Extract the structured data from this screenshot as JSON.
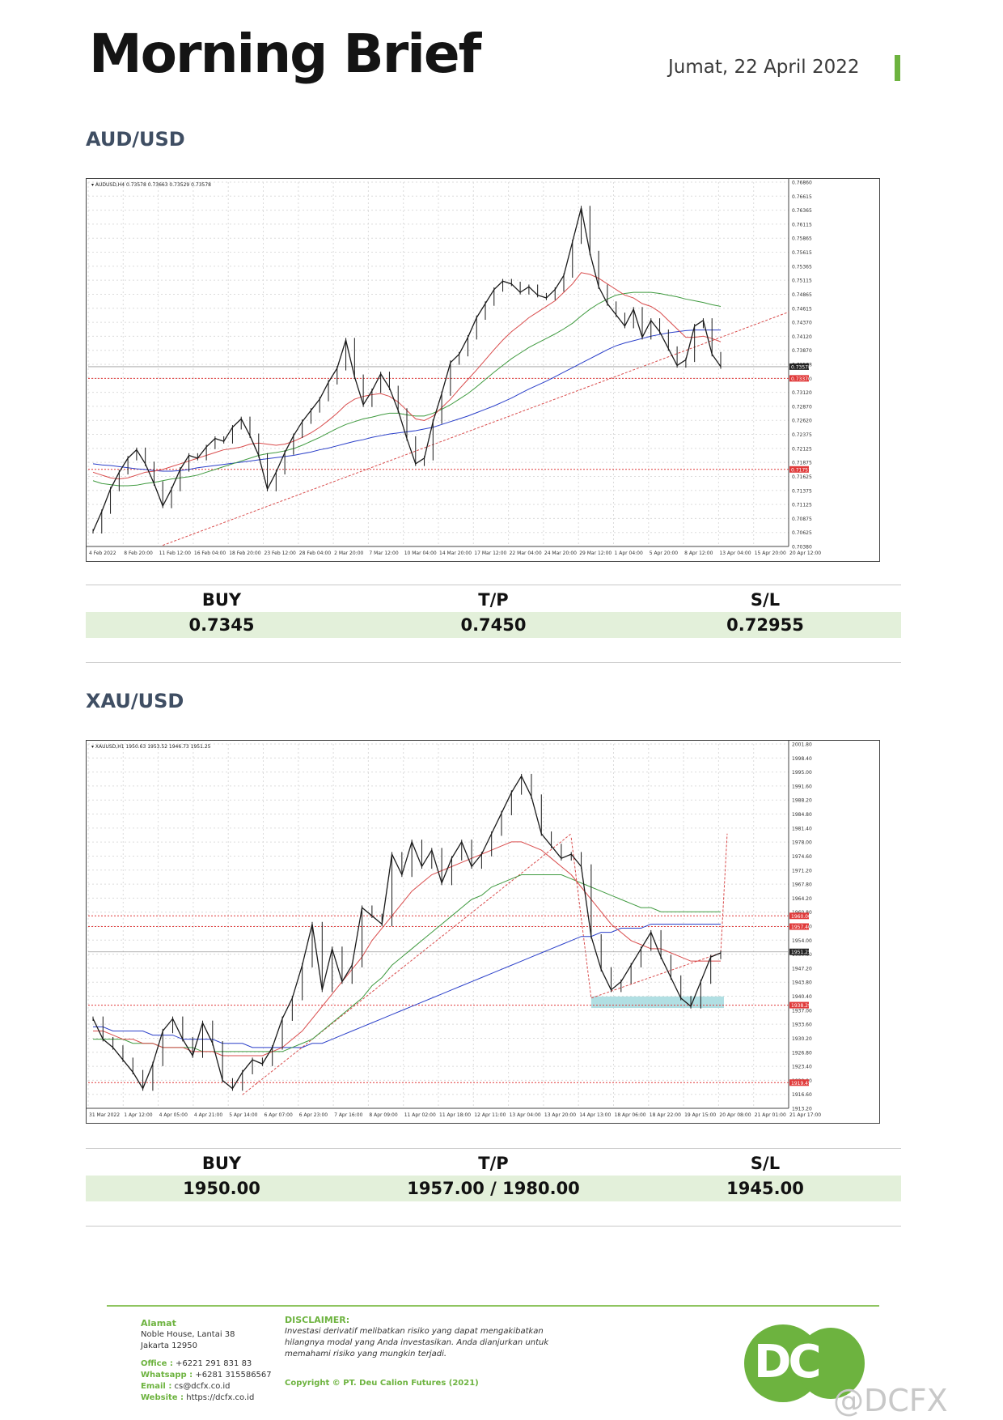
{
  "header": {
    "brand": "Morning Brief",
    "date": "Jumat, 22 April 2022",
    "accent_color": "#6db33f"
  },
  "aud": {
    "title": "AUD/USD",
    "chart_info": "AUDUSD,H4  0.73578 0.73663 0.73529 0.73578",
    "chart_data": {
      "type": "line",
      "symbol": "AUDUSD,H4",
      "ylim": [
        0.7038,
        0.7686
      ],
      "y_ticks": [
        "0.76860",
        "0.76615",
        "0.76365",
        "0.76115",
        "0.75865",
        "0.75615",
        "0.75365",
        "0.75115",
        "0.74865",
        "0.74615",
        "0.74370",
        "0.74120",
        "0.73870",
        "0.73578",
        "0.73370",
        "0.73120",
        "0.72870",
        "0.72620",
        "0.72375",
        "0.72125",
        "0.71875",
        "0.71625",
        "0.71375",
        "0.71125",
        "0.70875",
        "0.70625",
        "0.70380"
      ],
      "x_ticks": [
        "4 Feb 2022",
        "8 Feb 20:00",
        "11 Feb 12:00",
        "16 Feb 04:00",
        "18 Feb 20:00",
        "23 Feb 12:00",
        "28 Feb 04:00",
        "2 Mar 20:00",
        "7 Mar 12:00",
        "10 Mar 04:00",
        "14 Mar 20:00",
        "17 Mar 12:00",
        "22 Mar 04:00",
        "24 Mar 20:00",
        "29 Mar 12:00",
        "1 Apr 04:00",
        "5 Apr 20:00",
        "8 Apr 12:00",
        "13 Apr 04:00",
        "15 Apr 20:00",
        "20 Apr 12:00"
      ],
      "price_labels": [
        {
          "label": "0.73578",
          "value": 0.73578,
          "color": "#222222"
        },
        {
          "label": "0.73370",
          "value": 0.7337,
          "color": "#e03a3a"
        },
        {
          "label": "0.71751",
          "value": 0.71751,
          "color": "#e03a3a"
        }
      ],
      "close": [
        0.7065,
        0.71,
        0.714,
        0.717,
        0.7195,
        0.721,
        0.7185,
        0.715,
        0.711,
        0.714,
        0.7175,
        0.72,
        0.7195,
        0.7215,
        0.723,
        0.7225,
        0.725,
        0.7265,
        0.7235,
        0.72,
        0.714,
        0.717,
        0.7205,
        0.7235,
        0.726,
        0.728,
        0.73,
        0.733,
        0.7355,
        0.7405,
        0.734,
        0.729,
        0.7315,
        0.7345,
        0.732,
        0.728,
        0.723,
        0.7185,
        0.7195,
        0.726,
        0.731,
        0.7365,
        0.738,
        0.741,
        0.7445,
        0.747,
        0.7495,
        0.751,
        0.7505,
        0.749,
        0.75,
        0.7485,
        0.748,
        0.7495,
        0.752,
        0.758,
        0.764,
        0.756,
        0.75,
        0.747,
        0.745,
        0.743,
        0.746,
        0.741,
        0.744,
        0.742,
        0.739,
        0.736,
        0.737,
        0.743,
        0.744,
        0.738,
        0.7358
      ],
      "ma_red": [
        0.717,
        0.7165,
        0.716,
        0.7158,
        0.716,
        0.7165,
        0.717,
        0.7172,
        0.7175,
        0.718,
        0.7185,
        0.719,
        0.7195,
        0.72,
        0.7205,
        0.721,
        0.7212,
        0.7215,
        0.722,
        0.7222,
        0.722,
        0.7218,
        0.722,
        0.7225,
        0.7232,
        0.724,
        0.725,
        0.7262,
        0.7275,
        0.729,
        0.73,
        0.7305,
        0.7308,
        0.731,
        0.7305,
        0.7295,
        0.728,
        0.7265,
        0.7262,
        0.727,
        0.7285,
        0.73,
        0.7318,
        0.7335,
        0.7352,
        0.737,
        0.7388,
        0.7405,
        0.742,
        0.7432,
        0.7445,
        0.7455,
        0.7465,
        0.7475,
        0.749,
        0.7505,
        0.7525,
        0.7522,
        0.7515,
        0.7505,
        0.7495,
        0.7485,
        0.748,
        0.747,
        0.7465,
        0.7455,
        0.744,
        0.7425,
        0.741,
        0.741,
        0.7412,
        0.7408,
        0.7402
      ],
      "ma_green": [
        0.7155,
        0.715,
        0.7148,
        0.7146,
        0.7146,
        0.7147,
        0.715,
        0.7152,
        0.7155,
        0.7158,
        0.716,
        0.7162,
        0.7165,
        0.717,
        0.7175,
        0.718,
        0.7185,
        0.719,
        0.7195,
        0.72,
        0.7203,
        0.7205,
        0.7208,
        0.7212,
        0.7218,
        0.7225,
        0.7232,
        0.724,
        0.7248,
        0.7255,
        0.726,
        0.7265,
        0.7268,
        0.7272,
        0.7275,
        0.7275,
        0.7272,
        0.727,
        0.727,
        0.7275,
        0.7282,
        0.729,
        0.73,
        0.731,
        0.7322,
        0.7335,
        0.7348,
        0.736,
        0.7372,
        0.7382,
        0.7392,
        0.74,
        0.7408,
        0.7416,
        0.7425,
        0.7435,
        0.7448,
        0.746,
        0.747,
        0.7478,
        0.7485,
        0.7488,
        0.749,
        0.749,
        0.749,
        0.7488,
        0.7485,
        0.7482,
        0.7478,
        0.7475,
        0.7472,
        0.7468,
        0.7465
      ],
      "ma_blue": [
        0.7185,
        0.7183,
        0.7182,
        0.718,
        0.7178,
        0.7176,
        0.7175,
        0.7173,
        0.7172,
        0.7172,
        0.7173,
        0.7175,
        0.7178,
        0.718,
        0.7182,
        0.7184,
        0.7186,
        0.7188,
        0.719,
        0.7192,
        0.7194,
        0.7196,
        0.7198,
        0.72,
        0.7203,
        0.7206,
        0.721,
        0.7213,
        0.7217,
        0.7221,
        0.7225,
        0.7228,
        0.7232,
        0.7235,
        0.7238,
        0.724,
        0.7242,
        0.7244,
        0.7247,
        0.725,
        0.7255,
        0.726,
        0.7265,
        0.727,
        0.7276,
        0.7282,
        0.7288,
        0.7295,
        0.7302,
        0.731,
        0.7318,
        0.7325,
        0.7332,
        0.734,
        0.7348,
        0.7356,
        0.7364,
        0.7372,
        0.738,
        0.7388,
        0.7395,
        0.74,
        0.7404,
        0.7408,
        0.7412,
        0.7415,
        0.7418,
        0.742,
        0.7422,
        0.7423,
        0.7423,
        0.7423,
        0.7423
      ],
      "trend_start": 0.704,
      "trend_end": 0.7455,
      "series_colors": {
        "price": "#1a1a1a",
        "ma_red": "#d94c4c",
        "ma_green": "#3f9a3f",
        "ma_blue": "#2a3fc9"
      }
    },
    "table": {
      "headers": [
        "BUY",
        "T/P",
        "S/L"
      ],
      "values": [
        "0.7345",
        "0.7450",
        "0.72955"
      ]
    }
  },
  "xau": {
    "title": "XAU/USD",
    "chart_info": "XAUUSD,H1  1950.63 1953.52 1946.73 1951.25",
    "chart_data": {
      "type": "line",
      "symbol": "XAUUSD,H1",
      "ylim": [
        1913.2,
        2001.8
      ],
      "y_ticks": [
        "2001.80",
        "1998.40",
        "1995.00",
        "1991.60",
        "1988.20",
        "1984.80",
        "1981.40",
        "1978.00",
        "1974.60",
        "1971.20",
        "1967.80",
        "1964.20",
        "1960.80",
        "1957.40",
        "1954.00",
        "1950.60",
        "1947.20",
        "1943.80",
        "1940.40",
        "1937.00",
        "1933.60",
        "1930.20",
        "1926.80",
        "1923.40",
        "1920.00",
        "1916.60",
        "1913.20"
      ],
      "x_ticks": [
        "31 Mar 2022",
        "1 Apr 12:00",
        "4 Apr 05:00",
        "4 Apr 21:00",
        "5 Apr 14:00",
        "6 Apr 07:00",
        "6 Apr 23:00",
        "7 Apr 16:00",
        "8 Apr 09:00",
        "11 Apr 02:00",
        "11 Apr 18:00",
        "12 Apr 11:00",
        "13 Apr 04:00",
        "13 Apr 20:00",
        "14 Apr 13:00",
        "18 Apr 06:00",
        "18 Apr 22:00",
        "19 Apr 15:00",
        "20 Apr 08:00",
        "21 Apr 01:00",
        "21 Apr 17:00"
      ],
      "price_labels": [
        {
          "label": "1960.00",
          "value": 1960.0,
          "color": "#e03a3a"
        },
        {
          "label": "1957.40",
          "value": 1957.4,
          "color": "#e03a3a"
        },
        {
          "label": "1951.25",
          "value": 1951.25,
          "color": "#222222"
        },
        {
          "label": "1938.29",
          "value": 1938.29,
          "color": "#e03a3a"
        },
        {
          "label": "1919.45",
          "value": 1919.45,
          "color": "#e03a3a"
        }
      ],
      "support_zone": [
        1937.6,
        1940.4
      ],
      "close": [
        1935,
        1930,
        1928,
        1925,
        1922,
        1918,
        1924,
        1932,
        1935,
        1930,
        1926,
        1934,
        1929,
        1920,
        1918,
        1922,
        1925,
        1924,
        1928,
        1935,
        1940,
        1948,
        1958,
        1942,
        1952,
        1944,
        1948,
        1962,
        1960,
        1958,
        1975,
        1970,
        1978,
        1972,
        1976,
        1968,
        1974,
        1978,
        1972,
        1975,
        1980,
        1985,
        1990,
        1994,
        1989,
        1980,
        1977,
        1974,
        1975,
        1972,
        1955,
        1947,
        1942,
        1944,
        1948,
        1952,
        1956,
        1950,
        1945,
        1940,
        1938,
        1944,
        1950,
        1951
      ],
      "ma_red": [
        1932,
        1932,
        1931,
        1930,
        1930,
        1929,
        1929,
        1928,
        1928,
        1928,
        1927,
        1927,
        1927,
        1926,
        1926,
        1926,
        1926,
        1926,
        1927,
        1928,
        1930,
        1932,
        1935,
        1938,
        1941,
        1944,
        1947,
        1950,
        1954,
        1957,
        1960,
        1963,
        1966,
        1968,
        1970,
        1971,
        1972,
        1973,
        1974,
        1975,
        1976,
        1977,
        1978,
        1978,
        1977,
        1976,
        1974,
        1972,
        1970,
        1967,
        1964,
        1961,
        1958,
        1956,
        1954,
        1953,
        1952,
        1952,
        1951,
        1950,
        1949,
        1949,
        1949,
        1949
      ],
      "ma_green": [
        1930,
        1930,
        1930,
        1930,
        1929,
        1929,
        1929,
        1928,
        1928,
        1928,
        1928,
        1927,
        1927,
        1927,
        1927,
        1927,
        1927,
        1927,
        1927,
        1927,
        1928,
        1929,
        1930,
        1932,
        1934,
        1936,
        1938,
        1940,
        1943,
        1945,
        1948,
        1950,
        1952,
        1954,
        1956,
        1958,
        1960,
        1962,
        1964,
        1965,
        1967,
        1968,
        1969,
        1970,
        1970,
        1970,
        1970,
        1970,
        1969,
        1968,
        1967,
        1966,
        1965,
        1964,
        1963,
        1962,
        1962,
        1961,
        1961,
        1961,
        1961,
        1961,
        1961,
        1961
      ],
      "ma_blue": [
        1933,
        1933,
        1932,
        1932,
        1932,
        1932,
        1931,
        1931,
        1931,
        1930,
        1930,
        1930,
        1930,
        1929,
        1929,
        1929,
        1928,
        1928,
        1928,
        1928,
        1928,
        1928,
        1929,
        1929,
        1930,
        1931,
        1932,
        1933,
        1934,
        1935,
        1936,
        1937,
        1938,
        1939,
        1940,
        1941,
        1942,
        1943,
        1944,
        1945,
        1946,
        1947,
        1948,
        1949,
        1950,
        1951,
        1952,
        1953,
        1954,
        1955,
        1955,
        1956,
        1956,
        1957,
        1957,
        1957,
        1958,
        1958,
        1958,
        1958,
        1958,
        1958,
        1958,
        1958
      ],
      "series_colors": {
        "price": "#1a1a1a",
        "ma_red": "#d94c4c",
        "ma_green": "#3f9a3f",
        "ma_blue": "#2a3fc9"
      }
    },
    "table": {
      "headers": [
        "BUY",
        "T/P",
        "S/L"
      ],
      "values": [
        "1950.00",
        "1957.00 / 1980.00",
        "1945.00"
      ]
    }
  },
  "footer": {
    "alamat_label": "Alamat",
    "address_line1": "Noble House, Lantai 38",
    "address_line2": "Jakarta 12950",
    "office_label": "Office :",
    "office_value": "+6221 291 831 83",
    "whatsapp_label": "Whatsapp :",
    "whatsapp_value": "+6281 315586567",
    "email_label": "Email :",
    "email_value": "cs@dcfx.co.id",
    "website_label": "Website :",
    "website_value": "https://dcfx.co.id",
    "disclaimer_label": "DISCLAIMER:",
    "disclaimer_line1": "Investasi derivatif melibatkan risiko yang dapat mengakibatkan",
    "disclaimer_line2": "hilangnya modal yang Anda investasikan. Anda dianjurkan untuk",
    "disclaimer_line3": "memahami risiko yang mungkin terjadi.",
    "copyright": "Copyright © PT. Deu Calion Futures (2021)",
    "logo_text": "DC",
    "watermark": "@DCFX"
  }
}
